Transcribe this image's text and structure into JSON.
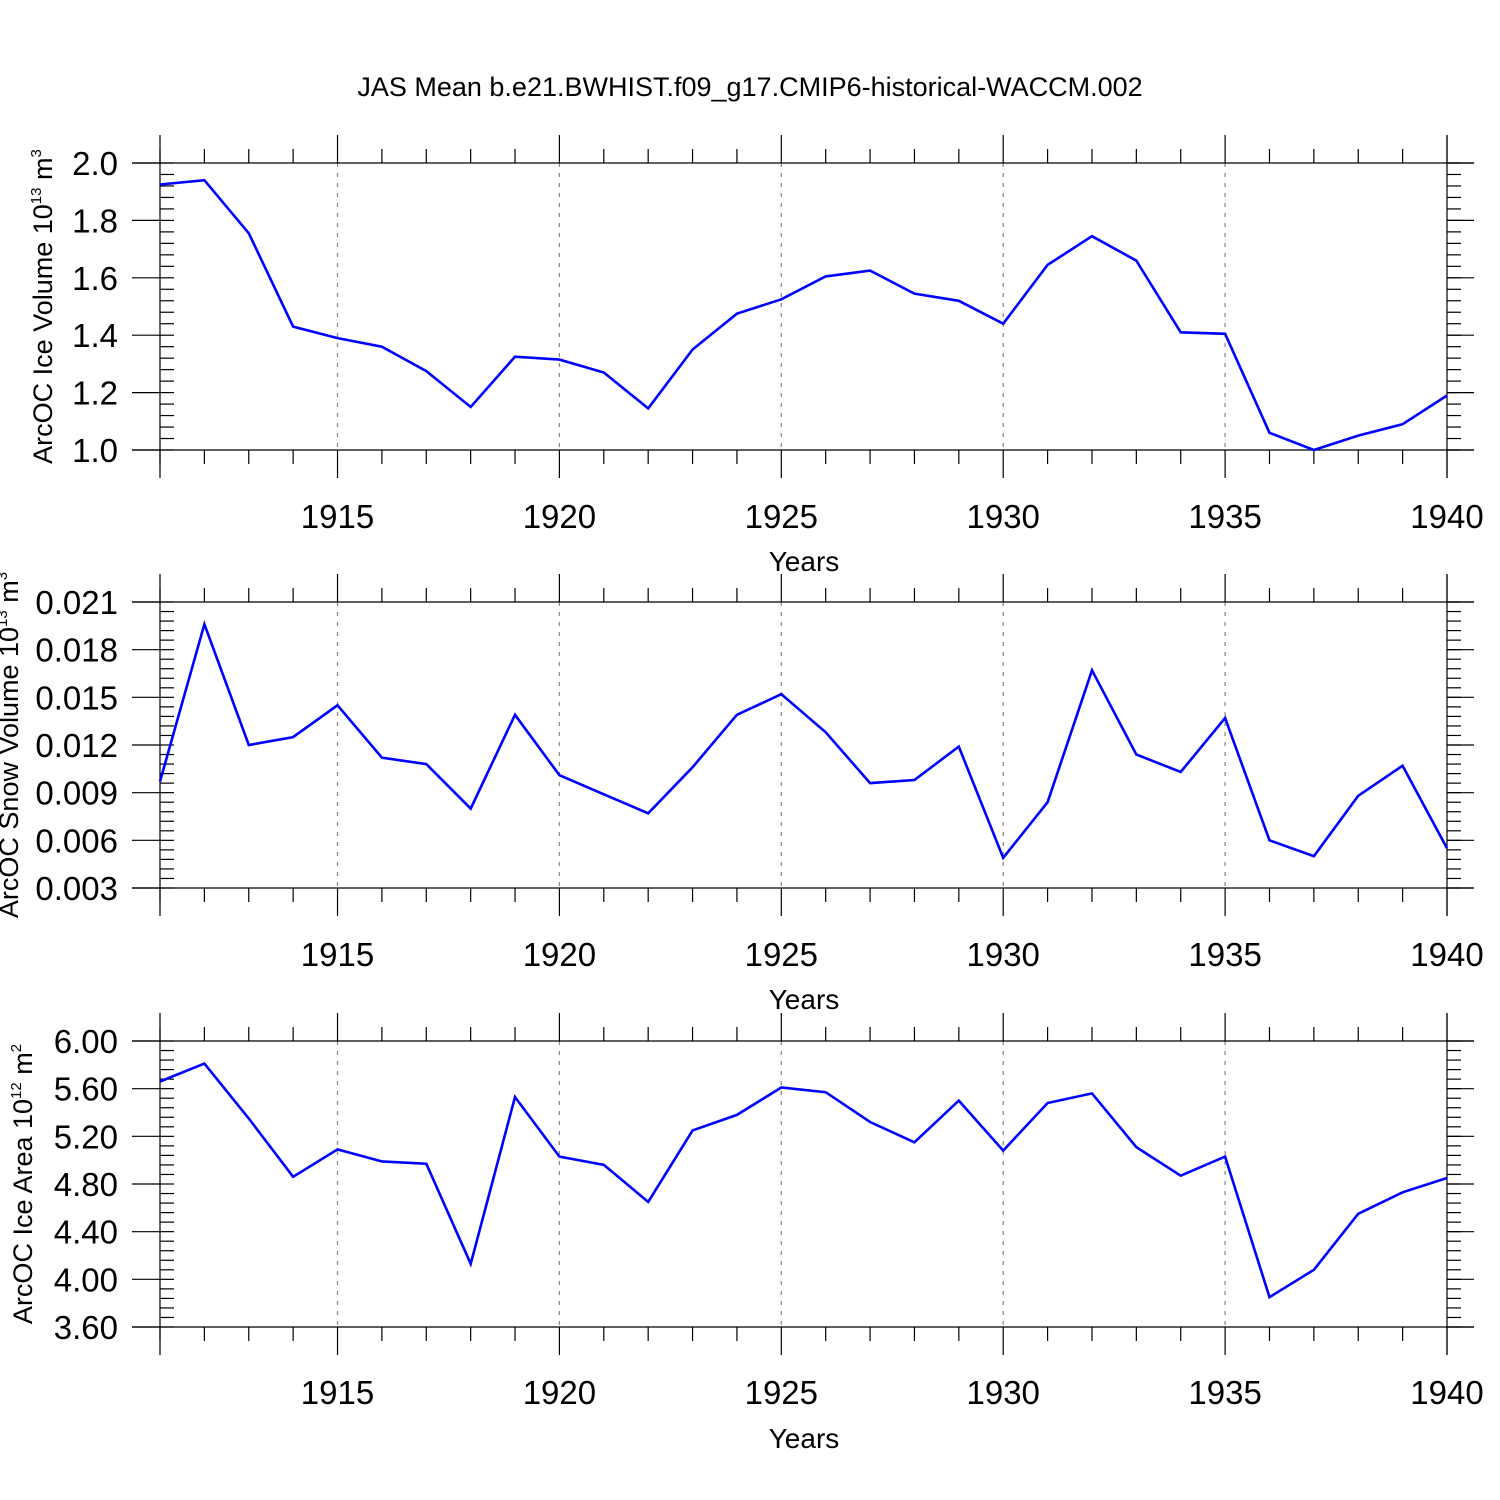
{
  "title": "JAS Mean b.e21.BWHIST.f09_g17.CMIP6-historical-WACCM.002",
  "colors": {
    "series": "#0000ff",
    "axis": "#000000",
    "grid": "#8c8c8c"
  },
  "chart_data": [
    {
      "type": "line",
      "ylabel": "ArcOC Ice Volume",
      "ylabel_unit_base": "10",
      "ylabel_unit_exp": "13",
      "ylabel_unit_tail": " m",
      "ylabel_unit_tail_exp": "3",
      "xlabel": "Years",
      "xlim": [
        1911,
        1940
      ],
      "ylim": [
        1.0,
        2.0
      ],
      "grid": "vertical dashed at major x ticks",
      "x_ticks": [
        "1915",
        "1920",
        "1925",
        "1930",
        "1935",
        "1940"
      ],
      "y_ticks": [
        "1.0",
        "1.2",
        "1.4",
        "1.6",
        "1.8",
        "2.0"
      ],
      "x": [
        1911,
        1912,
        1913,
        1914,
        1915,
        1916,
        1917,
        1918,
        1919,
        1920,
        1921,
        1922,
        1923,
        1924,
        1925,
        1926,
        1927,
        1928,
        1929,
        1930,
        1931,
        1932,
        1933,
        1934,
        1935,
        1936,
        1937,
        1938,
        1939,
        1940
      ],
      "values": [
        1.925,
        1.94,
        1.755,
        1.43,
        1.39,
        1.36,
        1.275,
        1.15,
        1.325,
        1.315,
        1.27,
        1.145,
        1.35,
        1.475,
        1.525,
        1.605,
        1.625,
        1.545,
        1.52,
        1.44,
        1.645,
        1.745,
        1.66,
        1.41,
        1.405,
        1.06,
        1.0,
        1.05,
        1.09,
        1.19
      ]
    },
    {
      "type": "line",
      "ylabel": "ArcOC Snow Volume",
      "ylabel_unit_base": "10",
      "ylabel_unit_exp": "13",
      "ylabel_unit_tail": " m",
      "ylabel_unit_tail_exp": "3",
      "xlabel": "Years",
      "xlim": [
        1911,
        1940
      ],
      "ylim": [
        0.003,
        0.021
      ],
      "grid": "vertical dashed at major x ticks",
      "x_ticks": [
        "1915",
        "1920",
        "1925",
        "1930",
        "1935",
        "1940"
      ],
      "y_ticks": [
        "0.003",
        "0.006",
        "0.009",
        "0.012",
        "0.015",
        "0.018",
        "0.021"
      ],
      "x": [
        1911,
        1912,
        1913,
        1914,
        1915,
        1916,
        1917,
        1918,
        1919,
        1920,
        1921,
        1922,
        1923,
        1924,
        1925,
        1926,
        1927,
        1928,
        1929,
        1930,
        1931,
        1932,
        1933,
        1934,
        1935,
        1936,
        1937,
        1938,
        1939,
        1940
      ],
      "values": [
        0.0097,
        0.0196,
        0.012,
        0.0125,
        0.0145,
        0.0112,
        0.0108,
        0.008,
        0.0139,
        0.0101,
        0.0089,
        0.0077,
        0.0106,
        0.0139,
        0.0152,
        0.0128,
        0.0096,
        0.0098,
        0.0119,
        0.0049,
        0.0084,
        0.0167,
        0.0114,
        0.0103,
        0.0137,
        0.006,
        0.005,
        0.0088,
        0.0107,
        0.0055
      ]
    },
    {
      "type": "line",
      "ylabel": "ArcOC Ice Area",
      "ylabel_unit_base": "10",
      "ylabel_unit_exp": "12",
      "ylabel_unit_tail": " m",
      "ylabel_unit_tail_exp": "2",
      "xlabel": "Years",
      "xlim": [
        1911,
        1940
      ],
      "ylim": [
        3.6,
        6.0
      ],
      "grid": "vertical dashed at major x ticks",
      "x_ticks": [
        "1915",
        "1920",
        "1925",
        "1930",
        "1935",
        "1940"
      ],
      "y_ticks": [
        "3.60",
        "4.00",
        "4.40",
        "4.80",
        "5.20",
        "5.60",
        "6.00"
      ],
      "x": [
        1911,
        1912,
        1913,
        1914,
        1915,
        1916,
        1917,
        1918,
        1919,
        1920,
        1921,
        1922,
        1923,
        1924,
        1925,
        1926,
        1927,
        1928,
        1929,
        1930,
        1931,
        1932,
        1933,
        1934,
        1935,
        1936,
        1937,
        1938,
        1939,
        1940
      ],
      "values": [
        5.66,
        5.81,
        5.35,
        4.86,
        5.09,
        4.99,
        4.97,
        4.13,
        5.53,
        5.03,
        4.96,
        4.65,
        5.25,
        5.38,
        5.61,
        5.57,
        5.32,
        5.15,
        5.5,
        5.08,
        5.48,
        5.56,
        5.11,
        4.87,
        5.03,
        3.85,
        4.08,
        4.55,
        4.73,
        4.85
      ]
    }
  ]
}
